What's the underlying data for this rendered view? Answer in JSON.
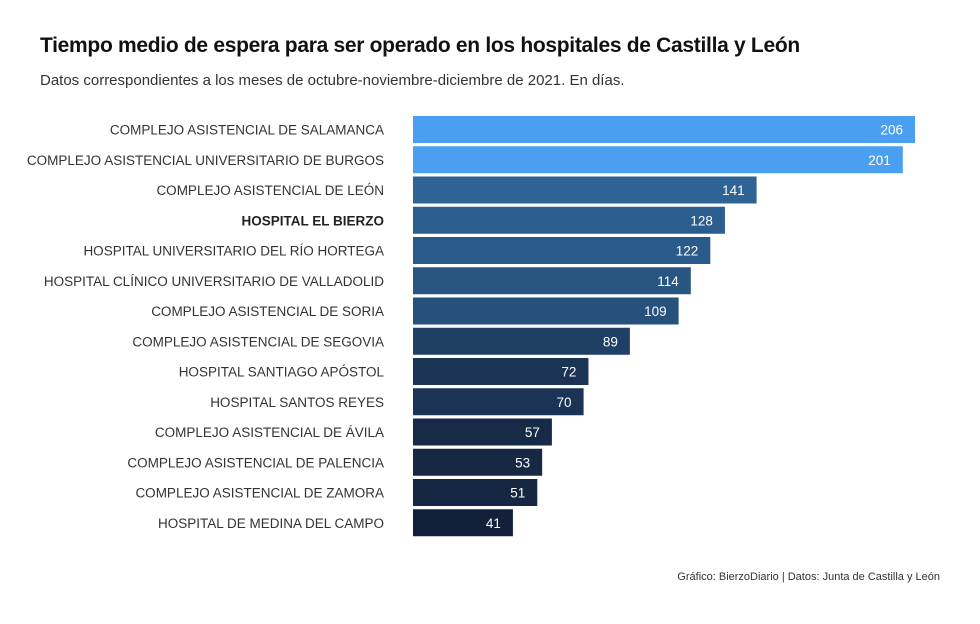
{
  "chart_data": {
    "type": "bar",
    "orientation": "horizontal",
    "title": "Tiempo medio de espera para ser operado en los hospitales de Castilla y León",
    "subtitle": "Datos correspondientes a los meses de octubre-noviembre-diciembre de 2021. En días.",
    "categories": [
      "COMPLEJO ASISTENCIAL DE SALAMANCA",
      "COMPLEJO ASISTENCIAL UNIVERSITARIO DE BURGOS",
      "COMPLEJO ASISTENCIAL DE LEÓN",
      "HOSPITAL EL BIERZO",
      "HOSPITAL UNIVERSITARIO DEL RÍO HORTEGA",
      "HOSPITAL CLÍNICO UNIVERSITARIO DE VALLADOLID",
      "COMPLEJO ASISTENCIAL DE SORIA",
      "COMPLEJO ASISTENCIAL DE SEGOVIA",
      "HOSPITAL SANTIAGO APÓSTOL",
      "HOSPITAL SANTOS REYES",
      "COMPLEJO ASISTENCIAL DE ÁVILA",
      "COMPLEJO ASISTENCIAL DE PALENCIA",
      "COMPLEJO ASISTENCIAL DE ZAMORA",
      "HOSPITAL DE MEDINA DEL CAMPO"
    ],
    "values": [
      206,
      201,
      141,
      128,
      122,
      114,
      109,
      89,
      72,
      70,
      57,
      53,
      51,
      41
    ],
    "highlight_category": "HOSPITAL EL BIERZO",
    "xlim": [
      0,
      210
    ],
    "grid": false,
    "legend": "none",
    "colors": [
      "#4a9ff0",
      "#4a9ff0",
      "#2e6396",
      "#2b5d8f",
      "#2a5a8a",
      "#285582",
      "#26517c",
      "#1f3f64",
      "#1b3456",
      "#1b3354",
      "#172a47",
      "#162844",
      "#162742",
      "#13203a"
    ],
    "source": "Gráfico: BierzoDiario | Datos: Junta de Castilla y León"
  }
}
